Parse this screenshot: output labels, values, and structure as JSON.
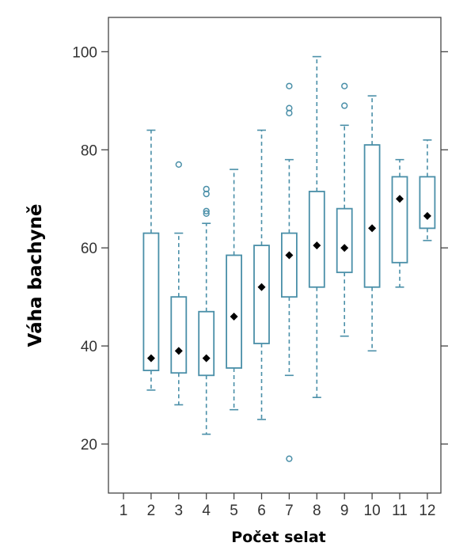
{
  "chart_data": {
    "type": "box",
    "xlabel": "Počet selat",
    "ylabel": "Váha bachyně",
    "categories": [
      "1",
      "2",
      "3",
      "4",
      "5",
      "6",
      "7",
      "8",
      "9",
      "10",
      "11",
      "12"
    ],
    "yticks": [
      "20",
      "40",
      "60",
      "80",
      "100"
    ],
    "ylim": [
      10,
      107
    ],
    "grid": false,
    "colors": {
      "box": "#4a8fa8",
      "mean": "#000000"
    },
    "boxes": [
      {
        "category": "2",
        "whisker_low": 31,
        "q1": 35,
        "q3": 63,
        "whisker_high": 84,
        "mean": 37.5,
        "outliers": []
      },
      {
        "category": "3",
        "whisker_low": 28,
        "q1": 34.5,
        "q3": 50,
        "whisker_high": 63,
        "mean": 39,
        "outliers": [
          77
        ]
      },
      {
        "category": "4",
        "whisker_low": 22,
        "q1": 34,
        "q3": 47,
        "whisker_high": 65,
        "mean": 37.5,
        "outliers": [
          67,
          67.5,
          71,
          72
        ]
      },
      {
        "category": "5",
        "whisker_low": 27,
        "q1": 35.5,
        "q3": 58.5,
        "whisker_high": 76,
        "mean": 46,
        "outliers": []
      },
      {
        "category": "6",
        "whisker_low": 25,
        "q1": 40.5,
        "q3": 60.5,
        "whisker_high": 84,
        "mean": 52,
        "outliers": []
      },
      {
        "category": "7",
        "whisker_low": 34,
        "q1": 50,
        "q3": 63,
        "whisker_high": 78,
        "mean": 58.5,
        "outliers": [
          17,
          87.5,
          88.5,
          93
        ]
      },
      {
        "category": "8",
        "whisker_low": 29.5,
        "q1": 52,
        "q3": 71.5,
        "whisker_high": 99,
        "mean": 60.5,
        "outliers": []
      },
      {
        "category": "9",
        "whisker_low": 42,
        "q1": 55,
        "q3": 68,
        "whisker_high": 85,
        "mean": 60,
        "outliers": [
          89,
          93
        ]
      },
      {
        "category": "10",
        "whisker_low": 39,
        "q1": 52,
        "q3": 81,
        "whisker_high": 91,
        "mean": 64,
        "outliers": []
      },
      {
        "category": "11",
        "whisker_low": 52,
        "q1": 57,
        "q3": 74.5,
        "whisker_high": 78,
        "mean": 70,
        "outliers": []
      },
      {
        "category": "12",
        "whisker_low": 61.5,
        "q1": 64,
        "q3": 74.5,
        "whisker_high": 82,
        "mean": 66.5,
        "outliers": []
      }
    ]
  }
}
